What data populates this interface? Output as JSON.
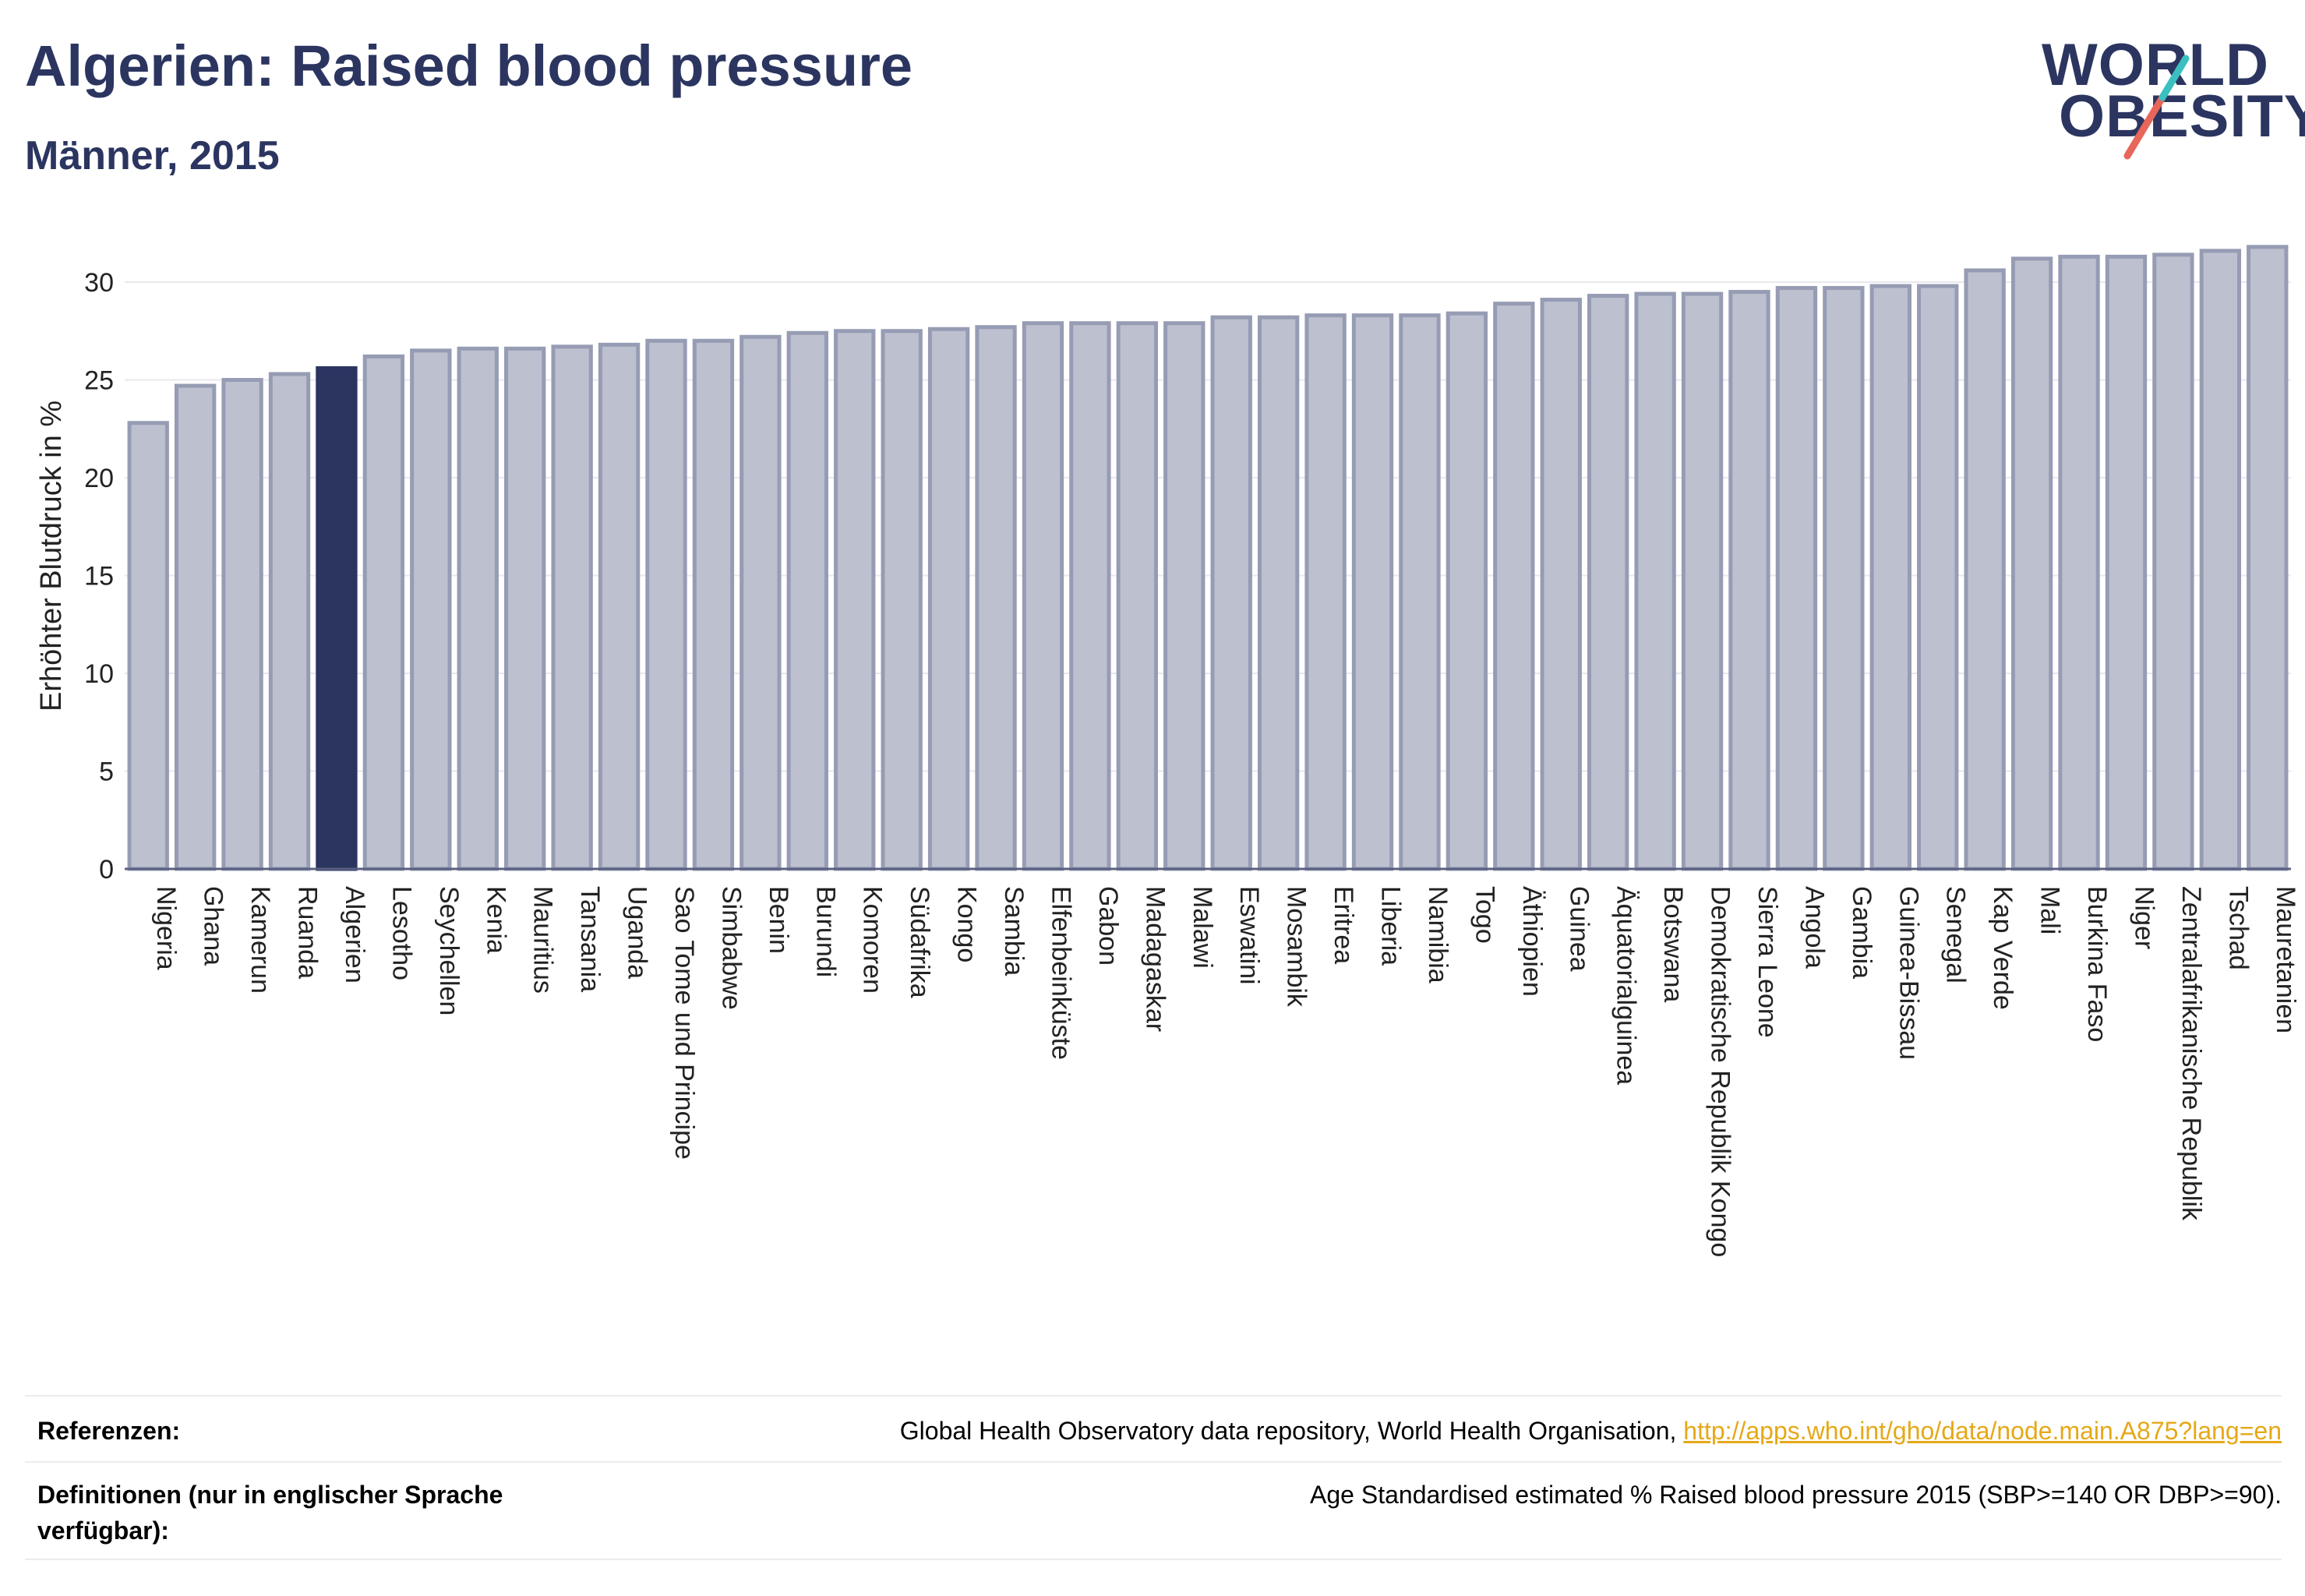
{
  "header": {
    "title": "Algerien: Raised blood pressure",
    "subtitle": "Männer, 2015"
  },
  "logo": {
    "line1": "WORLD",
    "line2": "OBESITY"
  },
  "colors": {
    "highlight": "#2b3560",
    "bar": "#bcc0cf",
    "bar_border": "#969cb3",
    "grid": "#e8e8ee",
    "logo_teal": "#3bbfbf",
    "logo_coral": "#e8665a"
  },
  "chart_data": {
    "type": "bar",
    "ylabel": "Erhöhter Blutdruck in %",
    "ylim": [
      0,
      32
    ],
    "yticks": [
      0,
      5,
      10,
      15,
      20,
      25,
      30
    ],
    "highlight": "Algerien",
    "categories": [
      "Nigeria",
      "Ghana",
      "Kamerun",
      "Ruanda",
      "Algerien",
      "Lesotho",
      "Seychellen",
      "Kenia",
      "Mauritius",
      "Tansania",
      "Uganda",
      "Sao Tome und Principe",
      "Simbabwe",
      "Benin",
      "Burundi",
      "Komoren",
      "Südafrika",
      "Kongo",
      "Sambia",
      "Elfenbeinküste",
      "Gabon",
      "Madagaskar",
      "Malawi",
      "Eswatini",
      "Mosambik",
      "Eritrea",
      "Liberia",
      "Namibia",
      "Togo",
      "Äthiopien",
      "Guinea",
      "Äquatorialguinea",
      "Botswana",
      "Demokratische Republik Kongo",
      "Sierra Leone",
      "Angola",
      "Gambia",
      "Guinea-Bissau",
      "Senegal",
      "Kap Verde",
      "Mali",
      "Burkina Faso",
      "Niger",
      "Zentralafrikanische Republik",
      "Tschad",
      "Mauretanien"
    ],
    "values": [
      22.8,
      24.7,
      25.0,
      25.3,
      25.6,
      26.2,
      26.5,
      26.6,
      26.6,
      26.7,
      26.8,
      27.0,
      27.0,
      27.2,
      27.4,
      27.5,
      27.5,
      27.6,
      27.7,
      27.9,
      27.9,
      27.9,
      27.9,
      28.2,
      28.2,
      28.3,
      28.3,
      28.3,
      28.4,
      28.9,
      29.1,
      29.3,
      29.4,
      29.4,
      29.5,
      29.7,
      29.7,
      29.8,
      29.8,
      30.6,
      31.2,
      31.3,
      31.3,
      31.4,
      31.6,
      31.8
    ]
  },
  "footer": {
    "references_label": "Referenzen:",
    "references_text": "Global Health Observatory data repository, World Health Organisation, ",
    "references_link": "http://apps.who.int/gho/data/node.main.A875?lang=en",
    "definitions_label": "Definitionen (nur in englischer Sprache verfügbar):",
    "definitions_text": "Age Standardised estimated % Raised blood pressure 2015 (SBP>=140 OR DBP>=90)."
  }
}
